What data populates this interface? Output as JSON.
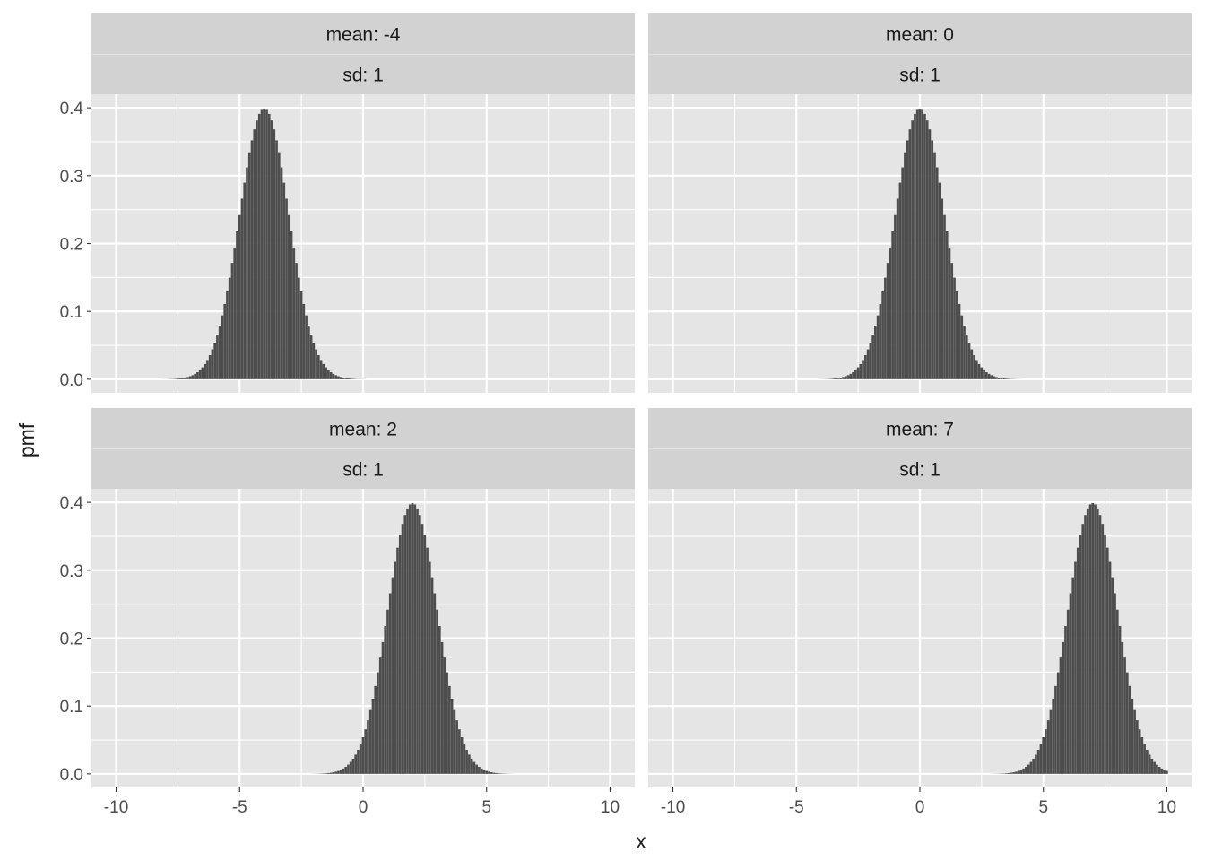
{
  "chart_data": {
    "type": "bar",
    "facet_layout": "2x2",
    "xlabel": "x",
    "ylabel": "pmf",
    "xlim": [
      -11,
      11
    ],
    "ylim": [
      -0.02,
      0.42
    ],
    "x_ticks": [
      -10,
      -5,
      0,
      5,
      10
    ],
    "x_tick_labels": [
      "-10",
      "-5",
      "0",
      "5",
      "10"
    ],
    "y_ticks": [
      0.0,
      0.1,
      0.2,
      0.3,
      0.4
    ],
    "y_tick_labels": [
      "0.0",
      "0.1",
      "0.2",
      "0.3",
      "0.4"
    ],
    "x_step": 0.1,
    "x_range": [
      -10,
      10
    ],
    "grid": true,
    "colors": {
      "panel_bg": "#e5e5e5",
      "strip_bg": "#d2d2d2",
      "grid": "#ffffff",
      "bar": "#4d4d4d",
      "text": "#1a1a1a",
      "tick_text": "#4d4d4d"
    },
    "facets": [
      {
        "strip_top": "mean: -4",
        "strip_bottom": "sd: 1",
        "mean": -4,
        "sd": 1
      },
      {
        "strip_top": "mean: 0",
        "strip_bottom": "sd: 1",
        "mean": 0,
        "sd": 1
      },
      {
        "strip_top": "mean: 2",
        "strip_bottom": "sd: 1",
        "mean": 2,
        "sd": 1
      },
      {
        "strip_top": "mean: 7",
        "strip_bottom": "sd: 1",
        "mean": 7,
        "sd": 1
      }
    ]
  }
}
